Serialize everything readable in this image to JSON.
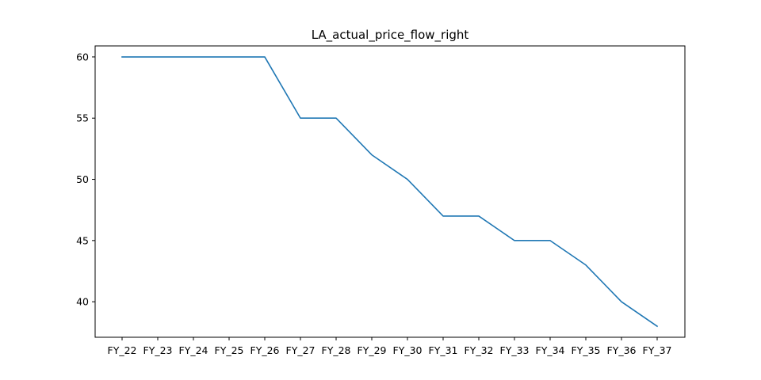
{
  "chart_data": {
    "type": "line",
    "title": "LA_actual_price_flow_right",
    "xlabel": "",
    "ylabel": "",
    "categories": [
      "FY_22",
      "FY_23",
      "FY_24",
      "FY_25",
      "FY_26",
      "FY_27",
      "FY_28",
      "FY_29",
      "FY_30",
      "FY_31",
      "FY_32",
      "FY_33",
      "FY_34",
      "FY_35",
      "FY_36",
      "FY_37"
    ],
    "series": [
      {
        "name": "LA_actual_price_flow_right",
        "values": [
          60,
          60,
          60,
          60,
          60,
          55,
          55,
          52,
          50,
          47,
          47,
          45,
          45,
          43,
          40,
          38
        ],
        "color": "#1f77b4"
      }
    ],
    "yticks": [
      40,
      45,
      50,
      55,
      60
    ],
    "ylim": [
      37.1,
      60.9
    ],
    "grid": false,
    "legend": "none"
  }
}
